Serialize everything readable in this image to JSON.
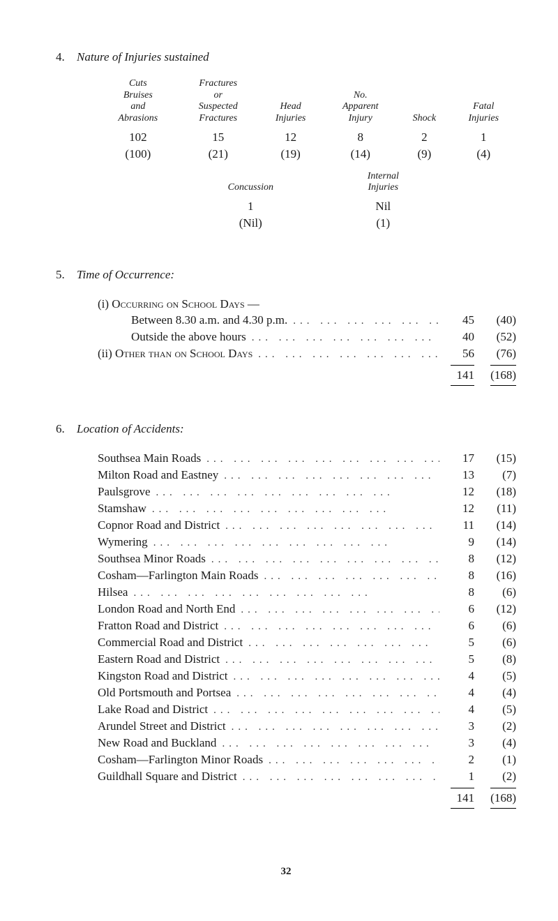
{
  "section4": {
    "num": "4.",
    "title": "Nature of Injuries sustained",
    "headers": [
      "Cuts\nBruises\nand\nAbrasions",
      "Fractures\nor\nSuspected\nFractures",
      "Head\nInjuries",
      "No.\nApparent\nInjury",
      "Shock",
      "Fatal\nInjuries"
    ],
    "row1": [
      "102",
      "15",
      "12",
      "8",
      "2",
      "1"
    ],
    "row2": [
      "(100)",
      "(21)",
      "(19)",
      "(14)",
      "(9)",
      "(4)"
    ],
    "headers2": [
      "Concussion",
      "Internal\nInjuries"
    ],
    "row3": [
      "1",
      "Nil"
    ],
    "row4": [
      "(Nil)",
      "(1)"
    ]
  },
  "section5": {
    "num": "5.",
    "title": "Time of Occurrence:",
    "item_i_label": "(i) Occurring on School Days —",
    "lines": [
      {
        "label": "Between 8.30 a.m. and 4.30 p.m.",
        "v1": "45",
        "v2": "(40)",
        "indent": true
      },
      {
        "label": "Outside the above hours",
        "v1": "40",
        "v2": "(52)",
        "indent": true
      }
    ],
    "item_ii": {
      "label": "(ii) Other than on School Days",
      "v1": "56",
      "v2": "(76)"
    },
    "total": {
      "v1": "141",
      "v2": "(168)"
    }
  },
  "section6": {
    "num": "6.",
    "title": "Location of Accidents:",
    "rows": [
      {
        "label": "Southsea Main Roads",
        "v1": "17",
        "v2": "(15)"
      },
      {
        "label": "Milton Road and Eastney",
        "v1": "13",
        "v2": "(7)"
      },
      {
        "label": "Paulsgrove",
        "v1": "12",
        "v2": "(18)"
      },
      {
        "label": "Stamshaw",
        "v1": "12",
        "v2": "(11)"
      },
      {
        "label": "Copnor Road and District",
        "v1": "11",
        "v2": "(14)"
      },
      {
        "label": "Wymering",
        "v1": "9",
        "v2": "(14)"
      },
      {
        "label": "Southsea Minor Roads",
        "v1": "8",
        "v2": "(12)"
      },
      {
        "label": "Cosham—Farlington Main Roads",
        "v1": "8",
        "v2": "(16)"
      },
      {
        "label": "Hilsea",
        "v1": "8",
        "v2": "(6)"
      },
      {
        "label": "London Road and North End",
        "v1": "6",
        "v2": "(12)"
      },
      {
        "label": "Fratton Road and District",
        "v1": "6",
        "v2": "(6)"
      },
      {
        "label": "Commercial Road and District",
        "v1": "5",
        "v2": "(6)"
      },
      {
        "label": "Eastern Road and District",
        "v1": "5",
        "v2": "(8)"
      },
      {
        "label": "Kingston Road and District",
        "v1": "4",
        "v2": "(5)"
      },
      {
        "label": "Old Portsmouth and Portsea",
        "v1": "4",
        "v2": "(4)"
      },
      {
        "label": "Lake Road and District",
        "v1": "4",
        "v2": "(5)"
      },
      {
        "label": "Arundel Street and District",
        "v1": "3",
        "v2": "(2)"
      },
      {
        "label": "New Road and Buckland",
        "v1": "3",
        "v2": "(4)"
      },
      {
        "label": "Cosham—Farlington Minor Roads",
        "v1": "2",
        "v2": "(1)"
      },
      {
        "label": "Guildhall Square and District",
        "v1": "1",
        "v2": "(2)"
      }
    ],
    "total": {
      "v1": "141",
      "v2": "(168)"
    }
  },
  "pageNumber": "32",
  "leader_dots": "...   ...   ...   ...   ...   ...   ...   ...   ..."
}
